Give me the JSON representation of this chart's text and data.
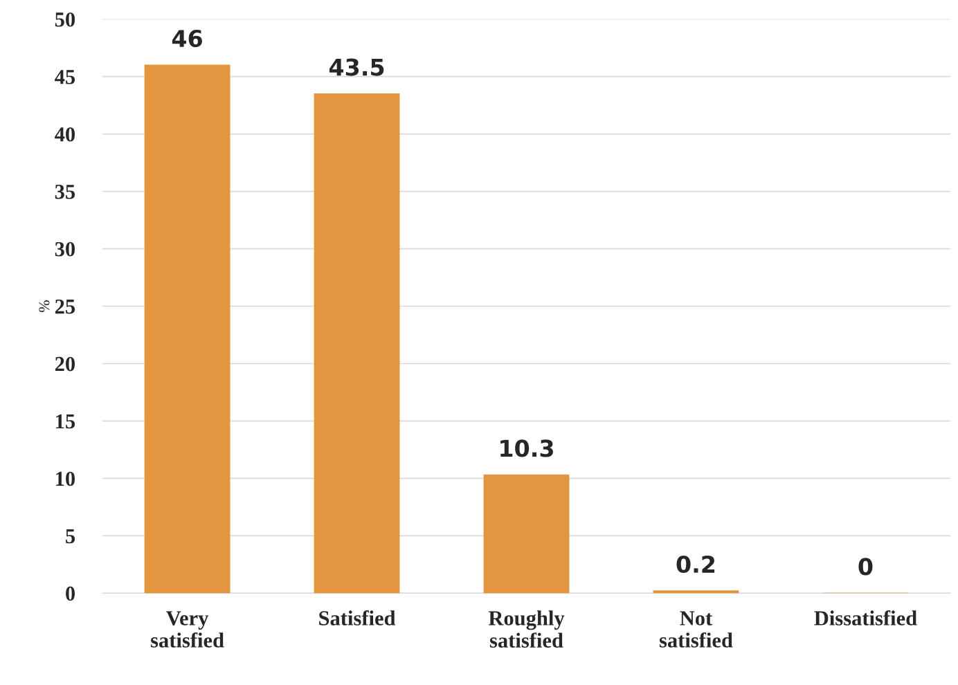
{
  "chart_data": {
    "type": "bar",
    "categories": [
      "Very\nsatisfied",
      "Satisfied",
      "Roughly\nsatisfied",
      "Not\nsatisfied",
      "Dissatisfied"
    ],
    "values": [
      46,
      43.5,
      10.3,
      0.2,
      0
    ],
    "color": "#e3953f",
    "ylabel": "%",
    "ylim": [
      0,
      50
    ],
    "yticks": [
      0,
      5,
      10,
      15,
      20,
      25,
      30,
      35,
      40,
      45,
      50
    ],
    "grid": "y",
    "data_labels": true
  }
}
